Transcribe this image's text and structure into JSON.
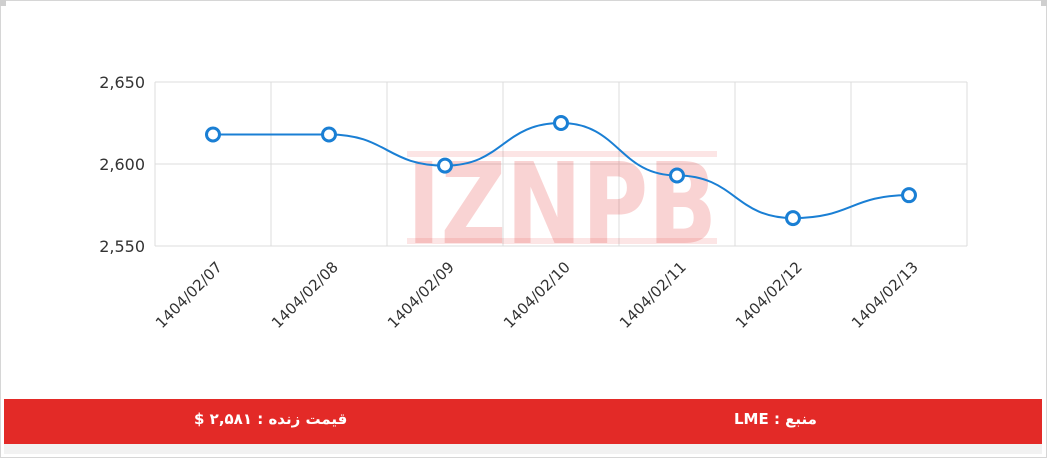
{
  "chart_data": {
    "type": "line",
    "x": [
      "1404/02/07",
      "1404/02/08",
      "1404/02/09",
      "1404/02/10",
      "1404/02/11",
      "1404/02/12",
      "1404/02/13"
    ],
    "series": [
      {
        "values": [
          2618,
          2618,
          2599,
          2625,
          2593,
          2567,
          2581
        ]
      }
    ],
    "ylim": [
      2550,
      2650
    ],
    "yticks": [
      2550,
      2600,
      2650
    ],
    "ytick_labels": [
      "2,550",
      "2,600",
      "2,650"
    ],
    "grid": true,
    "line_color": "#1a7fd4",
    "marker": "hollow-circle"
  },
  "watermark": {
    "text": "IZNPB",
    "colors": [
      "#e32a27",
      "#7a7a7a"
    ]
  },
  "footer": {
    "price_label": "قیمت زنده : ۲,۵۸۱ $",
    "source_label": "منبع : LME",
    "background": "#e32a27"
  }
}
